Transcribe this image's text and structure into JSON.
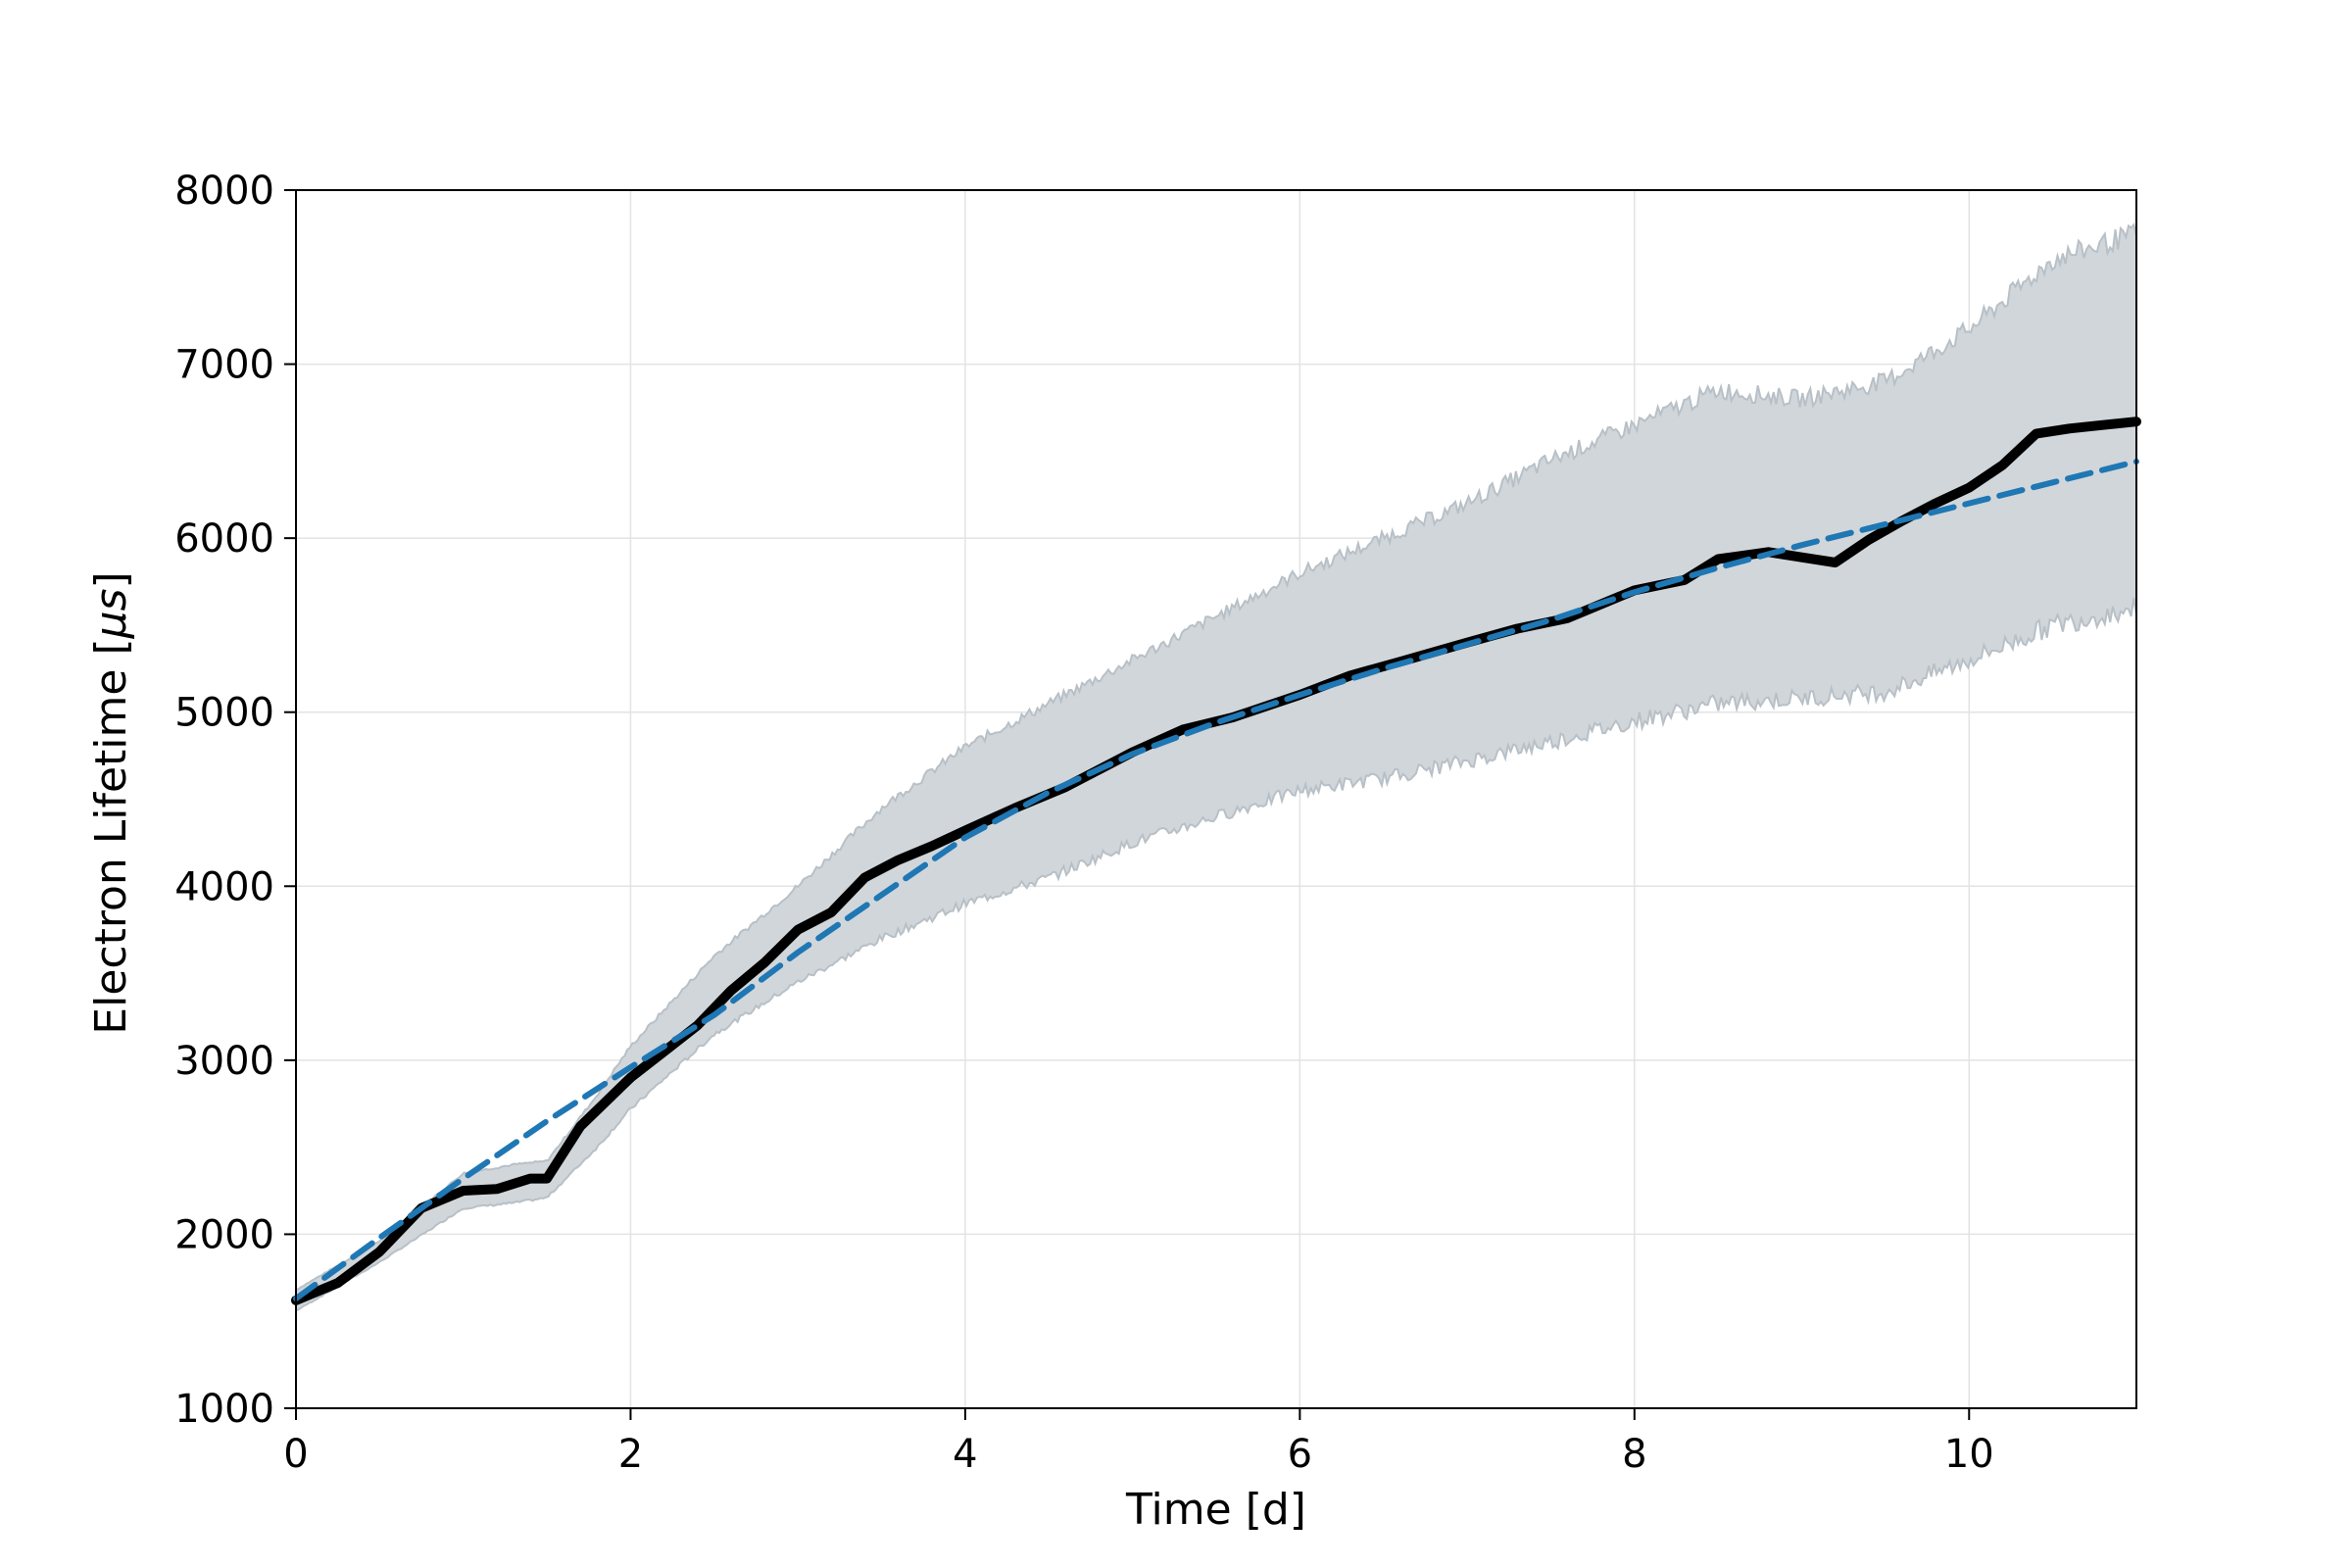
{
  "chart_data": {
    "type": "line",
    "title": "",
    "xlabel": "Time [d]",
    "ylabel_text": "Electron Lifetime [",
    "ylabel_unit": "μs",
    "ylabel_suffix": "]",
    "xlim": [
      0,
      11
    ],
    "ylim": [
      1000,
      8000
    ],
    "grid": true,
    "x_ticks": [
      0,
      2,
      4,
      6,
      8,
      10
    ],
    "y_ticks": [
      1000,
      2000,
      3000,
      4000,
      5000,
      6000,
      7000,
      8000
    ],
    "colors": {
      "measured": "#000000",
      "fit": "#1f77b4",
      "band_fill": "#d1d6da",
      "band_edge": "#b8c0c7",
      "grid": "#e3e3e3"
    },
    "series": [
      {
        "style": "solid-thick",
        "x": [
          0,
          0.25,
          0.5,
          0.75,
          1.0,
          1.2,
          1.4,
          1.5,
          1.7,
          2.0,
          2.2,
          2.4,
          2.6,
          2.8,
          3.0,
          3.2,
          3.4,
          3.6,
          3.8,
          4.0,
          4.3,
          4.6,
          5.0,
          5.3,
          5.6,
          6.0,
          6.3,
          6.6,
          7.0,
          7.3,
          7.6,
          8.0,
          8.3,
          8.5,
          8.8,
          9.0,
          9.2,
          9.4,
          9.6,
          9.8,
          10.0,
          10.2,
          10.4,
          10.6,
          10.8,
          11.0
        ],
        "y": [
          1620,
          1720,
          1900,
          2150,
          2250,
          2260,
          2320,
          2320,
          2620,
          2900,
          3050,
          3200,
          3400,
          3560,
          3750,
          3850,
          4050,
          4150,
          4230,
          4320,
          4450,
          4570,
          4770,
          4900,
          4970,
          5100,
          5210,
          5290,
          5400,
          5480,
          5540,
          5700,
          5760,
          5880,
          5920,
          5890,
          5860,
          5990,
          6100,
          6200,
          6290,
          6420,
          6600,
          6630,
          6650,
          6670
        ]
      },
      {
        "style": "dashed",
        "x": [
          0,
          0.5,
          1.0,
          1.5,
          2.0,
          2.5,
          3.0,
          3.5,
          4.0,
          4.5,
          5.0,
          5.5,
          6.0,
          6.5,
          7.0,
          7.5,
          8.0,
          8.5,
          9.0,
          9.5,
          10.0,
          10.5,
          11.0
        ],
        "y": [
          1630,
          1980,
          2320,
          2650,
          2960,
          3260,
          3620,
          3950,
          4280,
          4540,
          4760,
          4940,
          5100,
          5250,
          5390,
          5530,
          5690,
          5830,
          5960,
          6080,
          6200,
          6320,
          6440
        ]
      }
    ],
    "band": {
      "x": [
        0,
        0.5,
        1.0,
        1.3,
        1.5,
        1.8,
        2.0,
        2.5,
        3.0,
        3.5,
        4.0,
        4.5,
        5.0,
        5.5,
        6.0,
        6.5,
        7.0,
        7.5,
        8.0,
        8.5,
        9.0,
        9.5,
        10.0,
        10.5,
        11.0
      ],
      "upper": [
        1680,
        1960,
        2350,
        2400,
        2420,
        2800,
        3080,
        3600,
        4000,
        4450,
        4800,
        5050,
        5300,
        5550,
        5800,
        6000,
        6200,
        6450,
        6650,
        6850,
        6800,
        6900,
        7200,
        7600,
        7750
      ],
      "lower": [
        1560,
        1840,
        2150,
        2180,
        2210,
        2500,
        2720,
        3150,
        3450,
        3700,
        3900,
        4050,
        4250,
        4400,
        4550,
        4620,
        4720,
        4830,
        4950,
        5050,
        5080,
        5120,
        5300,
        5500,
        5600
      ]
    }
  }
}
